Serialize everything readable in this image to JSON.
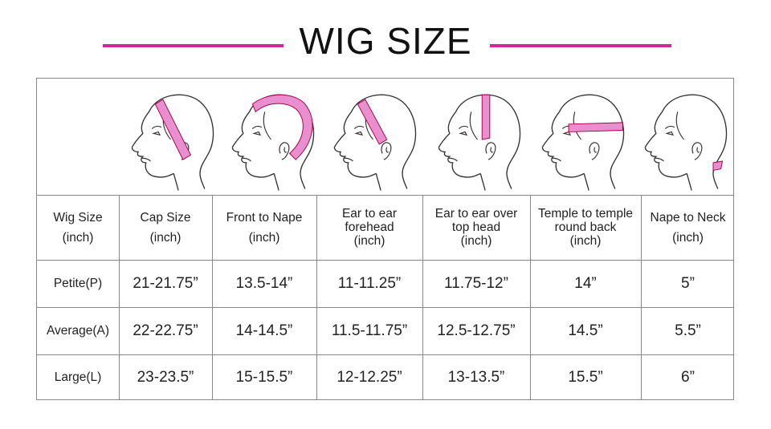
{
  "title": "WIG SIZE",
  "colors": {
    "accent": "#d8259e",
    "tape": "#e98fd0"
  },
  "illustrations": [
    {
      "icon": "head-cap-size-icon"
    },
    {
      "icon": "head-front-to-nape-icon"
    },
    {
      "icon": "head-ear-to-ear-forehead-icon"
    },
    {
      "icon": "head-ear-to-ear-top-icon"
    },
    {
      "icon": "head-temple-to-temple-icon"
    },
    {
      "icon": "head-nape-to-neck-icon"
    }
  ],
  "headers": [
    [
      "Wig Size",
      "(inch)"
    ],
    [
      "Cap Size",
      "(inch)"
    ],
    [
      "Front to Nape",
      "(inch)"
    ],
    [
      "Ear to ear",
      "forehead",
      "(inch)"
    ],
    [
      "Ear to ear over",
      "top head",
      "(inch)"
    ],
    [
      "Temple to temple",
      "round back",
      "(inch)"
    ],
    [
      "Nape to Neck",
      "(inch)"
    ]
  ],
  "rows": [
    [
      "Petite(P)",
      "21-21.75”",
      "13.5-14”",
      "11-11.25”",
      "11.75-12”",
      "14”",
      "5”"
    ],
    [
      "Average(A)",
      "22-22.75”",
      "14-14.5”",
      "11.5-11.75”",
      "12.5-12.75”",
      "14.5”",
      "5.5”"
    ],
    [
      "Large(L)",
      "23-23.5”",
      "15-15.5”",
      "12-12.25”",
      "13-13.5”",
      "15.5”",
      "6”"
    ]
  ]
}
